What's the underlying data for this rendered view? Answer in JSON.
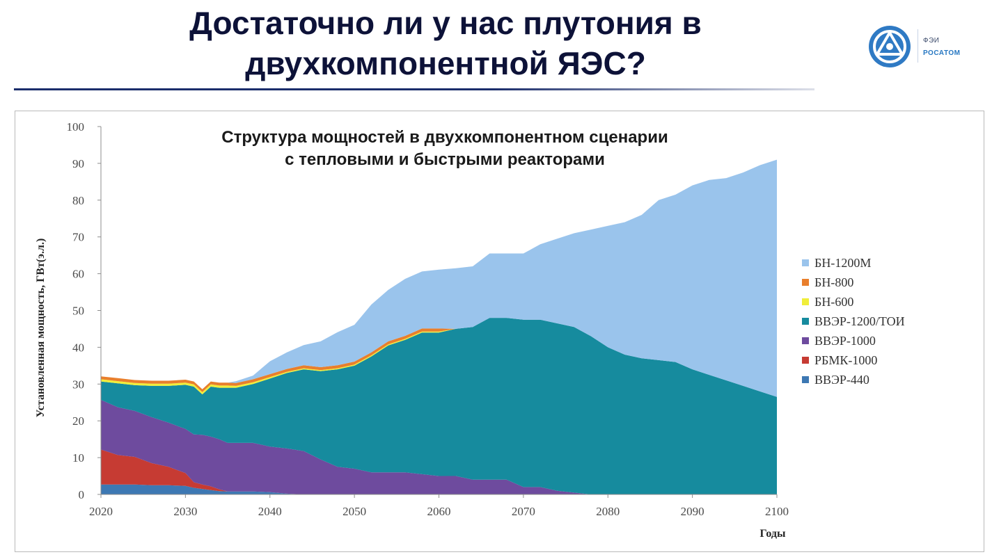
{
  "slide": {
    "title_line1": "Достаточно ли у нас плутония в",
    "title_line2": "двухкомпонентной ЯЭС?",
    "logo_text1": "ФЭИ",
    "logo_text2": "РОСАТОМ",
    "logo_icon": "rosatom-atom-logo",
    "accent_color": "#1b2d6b"
  },
  "chart_data": {
    "type": "area",
    "stacked": true,
    "title_line1": "Структура мощностей в двухкомпонентном сценарии",
    "title_line2": "с тепловыми и быстрыми реакторами",
    "xlabel": "Годы",
    "ylabel": "Установленная мощность, ГВт(э.л.)",
    "xlim": [
      2020,
      2100
    ],
    "ylim": [
      0,
      100
    ],
    "x_ticks": [
      "2020",
      "2030",
      "2040",
      "2050",
      "2060",
      "2070",
      "2080",
      "2090",
      "2100"
    ],
    "y_ticks": [
      "0",
      "10",
      "20",
      "30",
      "40",
      "50",
      "60",
      "70",
      "80",
      "90",
      "100"
    ],
    "x": [
      2020,
      2022,
      2024,
      2026,
      2028,
      2030,
      2031,
      2032,
      2033,
      2034,
      2035,
      2036,
      2038,
      2040,
      2042,
      2044,
      2046,
      2048,
      2050,
      2052,
      2054,
      2056,
      2058,
      2060,
      2062,
      2064,
      2066,
      2068,
      2070,
      2072,
      2074,
      2076,
      2078,
      2080,
      2082,
      2084,
      2086,
      2088,
      2090,
      2092,
      2094,
      2096,
      2098,
      2100
    ],
    "series": [
      {
        "name": "ВВЭР-440",
        "color": "#3d78b3",
        "values": [
          2.7,
          2.7,
          2.7,
          2.5,
          2.5,
          2.3,
          1.8,
          1.5,
          1.2,
          0.9,
          0.8,
          0.8,
          0.8,
          0.6,
          0.2,
          0,
          0,
          0,
          0,
          0,
          0,
          0,
          0,
          0,
          0,
          0,
          0,
          0,
          0,
          0,
          0,
          0,
          0,
          0,
          0,
          0,
          0,
          0,
          0,
          0,
          0,
          0,
          0,
          0
        ]
      },
      {
        "name": "РБМК-1000",
        "color": "#c63b33",
        "values": [
          9.5,
          8.0,
          7.5,
          6.0,
          5.0,
          3.5,
          1.5,
          1.2,
          1.0,
          0.5,
          0,
          0,
          0,
          0,
          0,
          0,
          0,
          0,
          0,
          0,
          0,
          0,
          0,
          0,
          0,
          0,
          0,
          0,
          0,
          0,
          0,
          0,
          0,
          0,
          0,
          0,
          0,
          0,
          0,
          0,
          0,
          0,
          0,
          0
        ]
      },
      {
        "name": "ВВЭР-1000",
        "color": "#6e4b9e",
        "values": [
          13.5,
          13.0,
          12.5,
          12.5,
          12.0,
          12.0,
          13.0,
          13.5,
          13.5,
          13.6,
          13.2,
          13.2,
          13.2,
          12.4,
          12.3,
          11.8,
          9.5,
          7.5,
          7.0,
          6.0,
          6.0,
          6.0,
          5.5,
          5.0,
          5.0,
          4.0,
          4.0,
          4.0,
          2.0,
          2.0,
          1.0,
          0.5,
          0,
          0,
          0,
          0,
          0,
          0,
          0,
          0,
          0,
          0,
          0,
          0
        ]
      },
      {
        "name": "ВВЭР-1200/ТОИ",
        "color": "#168b9e",
        "values": [
          5.0,
          6.5,
          7.0,
          8.5,
          10.0,
          12.0,
          13.0,
          11.0,
          13.6,
          14.0,
          15.0,
          15.0,
          16.0,
          18.5,
          20.5,
          22.2,
          24.0,
          26.5,
          28.0,
          31.5,
          34.5,
          36.0,
          38.5,
          39.0,
          40.0,
          41.5,
          44.0,
          44.0,
          45.5,
          45.5,
          45.5,
          45.0,
          43.0,
          40.0,
          38.0,
          37.0,
          36.5,
          36.0,
          34.0,
          32.5,
          31.0,
          29.5,
          28.0,
          26.5
        ]
      },
      {
        "name": "БН-600",
        "color": "#f0ee3a",
        "values": [
          0.6,
          0.6,
          0.6,
          0.6,
          0.6,
          0.6,
          0.6,
          0.6,
          0.6,
          0.6,
          0.6,
          0.5,
          0.5,
          0.4,
          0.3,
          0.3,
          0.3,
          0.3,
          0.3,
          0.3,
          0.3,
          0.3,
          0.3,
          0.3,
          0,
          0,
          0,
          0,
          0,
          0,
          0,
          0,
          0,
          0,
          0,
          0,
          0,
          0,
          0,
          0,
          0,
          0,
          0,
          0
        ]
      },
      {
        "name": "БН-800",
        "color": "#e97f2c",
        "values": [
          0.8,
          0.8,
          0.8,
          0.8,
          0.8,
          0.8,
          0.8,
          0.8,
          0.8,
          0.8,
          0.8,
          0.8,
          0.8,
          0.8,
          0.8,
          0.8,
          0.8,
          0.8,
          0.8,
          0.8,
          0.8,
          0.8,
          0.8,
          0.8,
          0,
          0,
          0,
          0,
          0,
          0,
          0,
          0,
          0,
          0,
          0,
          0,
          0,
          0,
          0,
          0,
          0,
          0,
          0,
          0
        ]
      },
      {
        "name": "БН-1200М",
        "color": "#9ac4ec",
        "values": [
          0,
          0,
          0,
          0,
          0,
          0,
          0,
          0,
          0,
          0,
          0,
          0.5,
          1.0,
          3.5,
          4.5,
          5.5,
          7.0,
          9.0,
          10.0,
          13.0,
          14.0,
          15.5,
          15.5,
          16.0,
          16.5,
          16.5,
          17.5,
          17.5,
          18.0,
          20.5,
          23.0,
          25.5,
          29.0,
          33.0,
          36.0,
          39.0,
          43.5,
          45.5,
          50.0,
          53.0,
          55.0,
          58.0,
          61.5,
          64.5
        ]
      }
    ],
    "legend_order": [
      "БН-1200М",
      "БН-800",
      "БН-600",
      "ВВЭР-1200/ТОИ",
      "ВВЭР-1000",
      "РБМК-1000",
      "ВВЭР-440"
    ],
    "legend_position": "right",
    "grid": false
  }
}
